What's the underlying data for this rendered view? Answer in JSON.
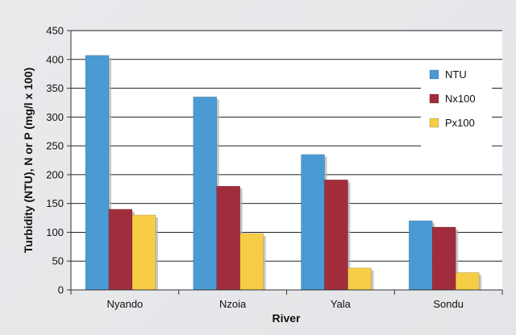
{
  "chart_data": {
    "type": "bar",
    "title": "",
    "xlabel": "River",
    "ylabel": "Turbidity (NTU), N or P (mg/l x 100)",
    "categories": [
      "Nyando",
      "Nzoia",
      "Yala",
      "Sondu"
    ],
    "series": [
      {
        "name": "NTU",
        "values": [
          407,
          335,
          235,
          120
        ],
        "color": "#4a9bd4"
      },
      {
        "name": "Nx100",
        "values": [
          140,
          180,
          191,
          109
        ],
        "color": "#a12d3c"
      },
      {
        "name": "Px100",
        "values": [
          130,
          98,
          38,
          30
        ],
        "color": "#f7cd45"
      }
    ],
    "ylim": [
      0,
      450
    ],
    "yticks": [
      0,
      50,
      100,
      150,
      200,
      250,
      300,
      350,
      400,
      450
    ],
    "grid": true,
    "legend_position": "top-right"
  }
}
